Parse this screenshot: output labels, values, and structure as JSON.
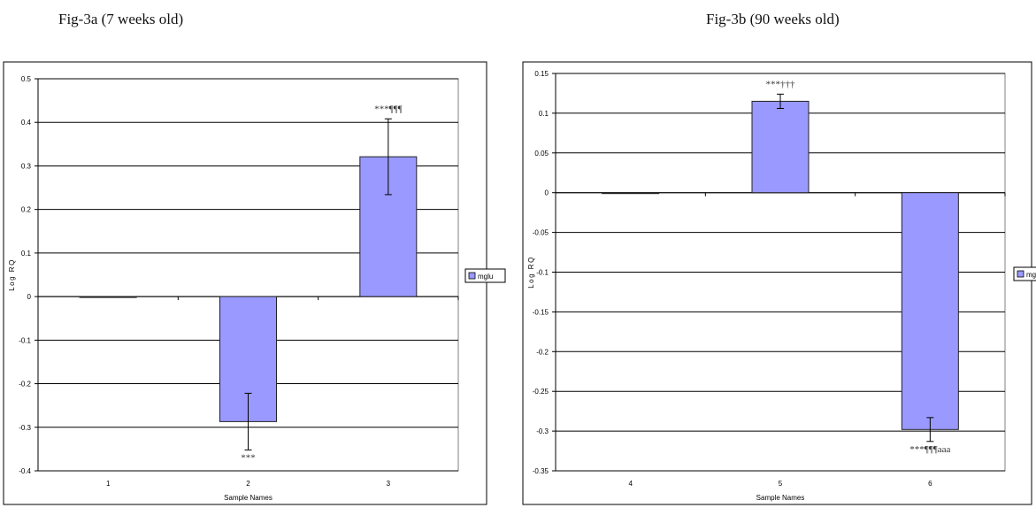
{
  "figures": [
    {
      "caption": "Fig-3a (7 weeks old)"
    },
    {
      "caption": "Fig-3b (90 weeks old)"
    }
  ],
  "colors": {
    "bar_fill": "#9999ff",
    "bar_stroke": "#222222",
    "gridline": "#000000"
  },
  "chart_data": [
    {
      "type": "bar",
      "title": "",
      "xlabel": "Sample Names",
      "ylabel": "Log RQ",
      "ylim": [
        -0.4,
        0.5
      ],
      "yticks": [
        0.5,
        0.4,
        0.3,
        0.2,
        0.1,
        0,
        -0.1,
        -0.2,
        -0.3,
        -0.4
      ],
      "ytick_labels": [
        "0.5",
        "0.4",
        "0.3",
        "0.2",
        "0.1",
        "0",
        "-0.1",
        "-0.2",
        "-0.3",
        "-0.4"
      ],
      "grid": true,
      "legend_position": "right",
      "categories": [
        "1",
        "2",
        "3"
      ],
      "series": [
        {
          "name": "mglu",
          "values": [
            0,
            -0.287,
            0.321
          ],
          "error": [
            0,
            0.065,
            0.087
          ]
        }
      ],
      "annotations": [
        {
          "category": "2",
          "text": "***",
          "position": "below"
        },
        {
          "category": "3",
          "text": "***¶¶¶",
          "position": "above"
        }
      ]
    },
    {
      "type": "bar",
      "title": "",
      "xlabel": "Sample Names",
      "ylabel": "Log RQ",
      "ylim": [
        -0.35,
        0.15
      ],
      "yticks": [
        0.15,
        0.1,
        0.05,
        0,
        -0.05,
        -0.1,
        -0.15,
        -0.2,
        -0.25,
        -0.3,
        -0.35
      ],
      "ytick_labels": [
        "0.15",
        "0.1",
        "0.05",
        "0",
        "-0.05",
        "-0.1",
        "-0.15",
        "-0.2",
        "-0.25",
        "-0.3",
        "-0.35"
      ],
      "grid": true,
      "legend_position": "right",
      "categories": [
        "4",
        "5",
        "6"
      ],
      "series": [
        {
          "name": "mglu",
          "values": [
            0,
            0.115,
            -0.298
          ],
          "error": [
            0,
            0.009,
            0.015
          ]
        }
      ],
      "annotations": [
        {
          "category": "5",
          "text": "***†††",
          "position": "above"
        },
        {
          "category": "6",
          "text": "***¶¶¶aaa",
          "position": "below"
        }
      ]
    }
  ]
}
